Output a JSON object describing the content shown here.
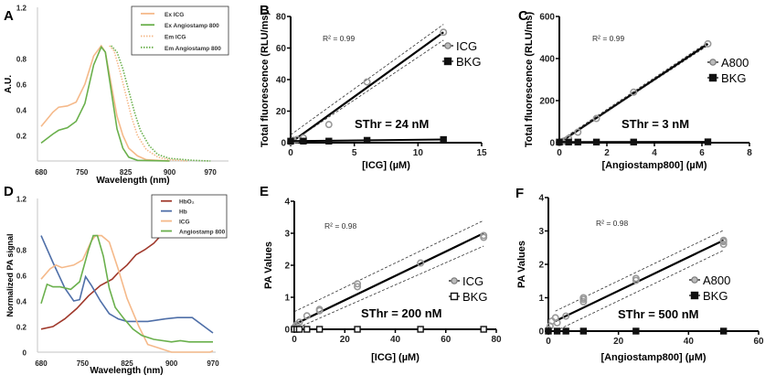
{
  "chart_data": [
    {
      "panel": "A",
      "type": "line",
      "xlabel": "Wavelength (nm)",
      "ylabel": "A.U.",
      "xlim": [
        680,
        990
      ],
      "ylim": [
        0,
        1.2
      ],
      "xticks": [
        680,
        750,
        825,
        900,
        970
      ],
      "yticks": [
        0.2,
        0.4,
        0.6,
        0.8,
        1.2
      ],
      "legend": "top-right",
      "series": [
        {
          "name": "Ex ICG",
          "color": "#f5b98a",
          "style": "solid",
          "x": [
            680,
            700,
            710,
            725,
            740,
            755,
            770,
            783,
            790,
            800,
            810,
            820,
            830,
            845,
            860,
            900
          ],
          "y": [
            0.27,
            0.38,
            0.42,
            0.43,
            0.46,
            0.6,
            0.82,
            0.9,
            0.85,
            0.6,
            0.35,
            0.2,
            0.1,
            0.04,
            0.01,
            0
          ]
        },
        {
          "name": "Ex Angiostamp 800",
          "color": "#6ab04c",
          "style": "solid",
          "x": [
            680,
            700,
            710,
            725,
            740,
            755,
            770,
            783,
            790,
            800,
            810,
            820,
            830,
            845,
            900
          ],
          "y": [
            0.14,
            0.21,
            0.24,
            0.26,
            0.31,
            0.45,
            0.75,
            0.89,
            0.85,
            0.55,
            0.25,
            0.1,
            0.03,
            0.005,
            0
          ]
        },
        {
          "name": "Em ICG",
          "color": "#f5b98a",
          "style": "dotted",
          "x": [
            797,
            805,
            815,
            825,
            835,
            845,
            860,
            880,
            900,
            930
          ],
          "y": [
            0.9,
            0.86,
            0.7,
            0.52,
            0.34,
            0.2,
            0.09,
            0.03,
            0.01,
            0
          ]
        },
        {
          "name": "Em Angiostamp 800",
          "color": "#6ab04c",
          "style": "dotted",
          "x": [
            800,
            810,
            820,
            830,
            840,
            850,
            865,
            880,
            900,
            940,
            970
          ],
          "y": [
            0.9,
            0.85,
            0.72,
            0.55,
            0.38,
            0.24,
            0.12,
            0.05,
            0.02,
            0.005,
            0
          ]
        }
      ]
    },
    {
      "panel": "B",
      "type": "scatter",
      "xlabel": "[ICG] (µM)",
      "ylabel": "Total fluorescence (RLU/ms)",
      "xlim": [
        0,
        15
      ],
      "ylim": [
        0,
        80
      ],
      "xticks": [
        0,
        5,
        10,
        15
      ],
      "yticks": [
        0,
        20,
        40,
        60,
        80
      ],
      "r_squared": "R² = 0.99",
      "annotation": "SThr = 24 nM",
      "fit": {
        "x": [
          0,
          12
        ],
        "y": [
          0,
          70
        ],
        "ci": 5
      },
      "series": [
        {
          "name": "ICG",
          "marker": "circle",
          "x": [
            0,
            0.1,
            0.2,
            0.5,
            1,
            3,
            6,
            12
          ],
          "y": [
            0.5,
            1,
            1.5,
            2,
            3,
            11.5,
            38.5,
            70
          ]
        },
        {
          "name": "BKG",
          "marker": "square-filled",
          "x": [
            0,
            1,
            3,
            6,
            12
          ],
          "y": [
            1,
            1,
            1,
            1.5,
            2
          ]
        }
      ]
    },
    {
      "panel": "C",
      "type": "scatter",
      "xlabel": "[Angiostamp800] (µM)",
      "ylabel": "Total fluorescence (RLU/ms)",
      "xlim": [
        0,
        8
      ],
      "ylim": [
        0,
        600
      ],
      "xticks": [
        0,
        2,
        4,
        6,
        8
      ],
      "yticks": [
        0,
        200,
        400,
        600
      ],
      "r_squared": "R² = 0.99",
      "annotation": "SThr = 3 nM",
      "fit": {
        "x": [
          0,
          6.25
        ],
        "y": [
          0,
          470
        ],
        "ci": 8
      },
      "series": [
        {
          "name": "A800",
          "marker": "circle",
          "x": [
            0,
            0.05,
            0.1,
            0.2,
            0.39,
            0.78,
            1.56,
            3.125,
            6.25
          ],
          "y": [
            0,
            2,
            4,
            8,
            20,
            50,
            115,
            240,
            470
          ]
        },
        {
          "name": "BKG",
          "marker": "square-filled",
          "x": [
            0,
            0.39,
            0.78,
            1.56,
            3.125,
            6.25
          ],
          "y": [
            3,
            3,
            3,
            3,
            3,
            4
          ]
        }
      ]
    },
    {
      "panel": "D",
      "type": "line",
      "xlabel": "Wavelength (nm)",
      "ylabel": "Normalized PA signal",
      "xlim": [
        680,
        970
      ],
      "ylim": [
        0,
        1.2
      ],
      "xticks": [
        680,
        750,
        825,
        900,
        970
      ],
      "yticks": [
        0,
        0.2,
        0.4,
        0.6,
        0.8,
        1.2
      ],
      "legend": "top-right",
      "series": [
        {
          "name": "HbO₂",
          "color": "#a0392c",
          "style": "solid",
          "x": [
            680,
            700,
            720,
            740,
            760,
            780,
            800,
            810,
            825,
            840,
            855,
            870,
            880
          ],
          "y": [
            0.18,
            0.2,
            0.26,
            0.34,
            0.44,
            0.52,
            0.57,
            0.62,
            0.68,
            0.76,
            0.8,
            0.85,
            0.9
          ]
        },
        {
          "name": "Hb",
          "color": "#4f6fa8",
          "style": "solid",
          "x": [
            680,
            700,
            720,
            735,
            745,
            755,
            765,
            780,
            795,
            810,
            825,
            860,
            890,
            910,
            935,
            970
          ],
          "y": [
            0.91,
            0.7,
            0.5,
            0.4,
            0.41,
            0.59,
            0.52,
            0.4,
            0.3,
            0.26,
            0.24,
            0.24,
            0.26,
            0.27,
            0.27,
            0.15
          ]
        },
        {
          "name": "ICG",
          "color": "#f5b98a",
          "style": "solid",
          "x": [
            680,
            695,
            705,
            715,
            735,
            750,
            765,
            772,
            782,
            795,
            810,
            825,
            845,
            860,
            880,
            900,
            965,
            970
          ],
          "y": [
            0.57,
            0.65,
            0.68,
            0.66,
            0.68,
            0.72,
            0.87,
            0.91,
            0.91,
            0.86,
            0.65,
            0.42,
            0.2,
            0.06,
            0.03,
            0,
            0,
            0.01
          ]
        },
        {
          "name": "Angiostamp 800",
          "color": "#6ab04c",
          "style": "solid",
          "x": [
            680,
            690,
            700,
            712,
            730,
            745,
            760,
            768,
            775,
            785,
            795,
            805,
            820,
            835,
            850,
            870,
            900,
            915,
            930,
            970
          ],
          "y": [
            0.38,
            0.53,
            0.51,
            0.51,
            0.49,
            0.55,
            0.8,
            0.91,
            0.91,
            0.75,
            0.5,
            0.35,
            0.26,
            0.18,
            0.13,
            0.1,
            0.08,
            0.09,
            0.08,
            0.08
          ]
        }
      ]
    },
    {
      "panel": "E",
      "type": "scatter",
      "xlabel": "[ICG] (µM)",
      "ylabel": "PA Values",
      "xlim": [
        0,
        80
      ],
      "ylim": [
        0,
        4
      ],
      "xticks": [
        0,
        20,
        40,
        60,
        80
      ],
      "yticks": [
        0,
        1,
        2,
        3,
        4
      ],
      "r_squared": "R² = 0.98",
      "annotation": "SThr = 200 nM",
      "fit": {
        "x": [
          0,
          75
        ],
        "y": [
          0.15,
          3.0
        ],
        "ci": 0.4
      },
      "series": [
        {
          "name": "ICG",
          "marker": "circle",
          "x": [
            0,
            0.5,
            1,
            2,
            5,
            10,
            10,
            25,
            25,
            50,
            75,
            75
          ],
          "y": [
            0.05,
            0.1,
            0.15,
            0.22,
            0.42,
            0.58,
            0.62,
            1.33,
            1.42,
            2.07,
            2.87,
            2.93
          ]
        },
        {
          "name": "BKG",
          "marker": "square-open",
          "x": [
            0,
            1,
            2,
            5,
            10,
            25,
            50,
            75
          ],
          "y": [
            0,
            0,
            0,
            0,
            0,
            0,
            0,
            0
          ]
        }
      ]
    },
    {
      "panel": "F",
      "type": "scatter",
      "xlabel": "[Angiostamp800] (µM)",
      "ylabel": "PA Values",
      "xlim": [
        0,
        60
      ],
      "ylim": [
        0,
        4
      ],
      "xticks": [
        0,
        20,
        40,
        60
      ],
      "yticks": [
        0,
        1,
        2,
        3,
        4
      ],
      "r_squared": "R² = 0.98",
      "annotation": "SThr = 500 nM",
      "fit": {
        "x": [
          2,
          50
        ],
        "y": [
          0.3,
          2.72
        ],
        "ci": 0.3
      },
      "series": [
        {
          "name": "A800",
          "marker": "circle",
          "x": [
            0,
            0.5,
            1,
            2,
            2.5,
            5,
            10,
            10,
            10,
            25,
            25,
            50,
            50,
            50
          ],
          "y": [
            0.05,
            0.15,
            0.3,
            0.4,
            0.25,
            0.45,
            0.88,
            0.95,
            1.0,
            1.52,
            1.58,
            2.6,
            2.68,
            2.72
          ]
        },
        {
          "name": "BKG",
          "marker": "square-filled",
          "x": [
            0,
            2.5,
            5,
            10,
            25,
            50
          ],
          "y": [
            0,
            0,
            0,
            0,
            0,
            0
          ]
        }
      ]
    }
  ]
}
